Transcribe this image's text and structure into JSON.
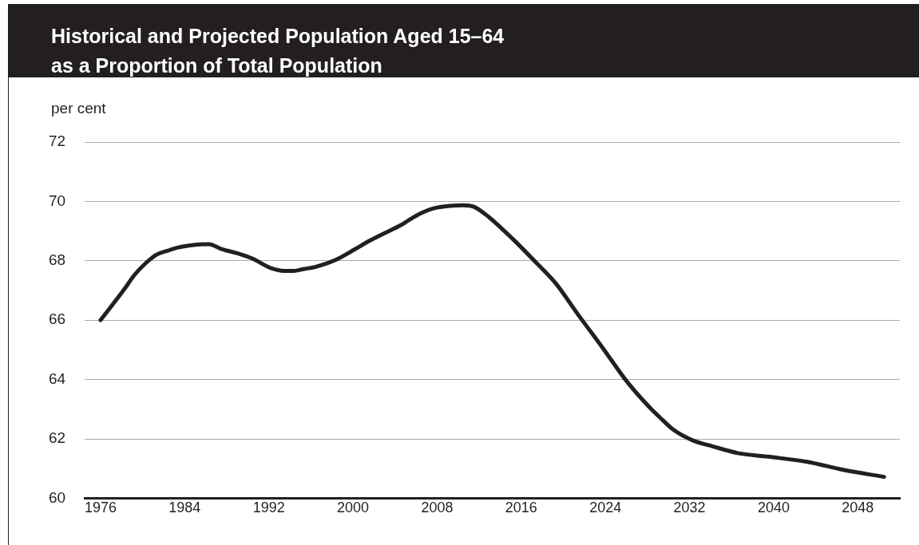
{
  "chart_data": {
    "type": "line",
    "title": "Historical and Projected Population Aged 15–64\nas a Proportion of Total Population",
    "ylabel": "per cent",
    "x": [
      1976,
      1978.3,
      1979.2,
      1980.3,
      1981.3,
      1982.4,
      1983.3,
      1984.4,
      1986.3,
      1987.4,
      1989.3,
      1990.4,
      1992.3,
      1993.4,
      1994.4,
      1995.3,
      1996.4,
      1998.3,
      2000.2,
      2001.5,
      2003,
      2004.5,
      2005.6,
      2006.5,
      2007.6,
      2009.2,
      2010.5,
      2011.5,
      2012.9,
      2014.1,
      2015.5,
      2017.3,
      2019.3,
      2021.4,
      2023.8,
      2025.9,
      2028.1,
      2029.4,
      2030.5,
      2032.3,
      2034.2,
      2036.6,
      2039.5,
      2043.3,
      2046.7,
      2050.5
    ],
    "values": [
      66.0,
      67.06,
      67.51,
      67.92,
      68.2,
      68.34,
      68.44,
      68.51,
      68.56,
      68.41,
      68.22,
      68.08,
      67.74,
      67.66,
      67.66,
      67.72,
      67.79,
      68.02,
      68.39,
      68.66,
      68.93,
      69.19,
      69.43,
      69.61,
      69.76,
      69.85,
      69.87,
      69.82,
      69.48,
      69.1,
      68.63,
      67.98,
      67.23,
      66.19,
      65.04,
      64.0,
      63.1,
      62.65,
      62.3,
      61.95,
      61.75,
      61.52,
      61.4,
      61.22,
      60.95,
      60.72
    ],
    "color": "#231f20",
    "xlim": [
      1974.5,
      2052
    ],
    "xticks": [
      1976,
      1984,
      1992,
      2000,
      2008,
      2016,
      2024,
      2032,
      2040,
      2048
    ],
    "ylim": [
      60,
      72
    ],
    "yticks": [
      60,
      62,
      64,
      66,
      68,
      70,
      72
    ],
    "grid": "y"
  }
}
